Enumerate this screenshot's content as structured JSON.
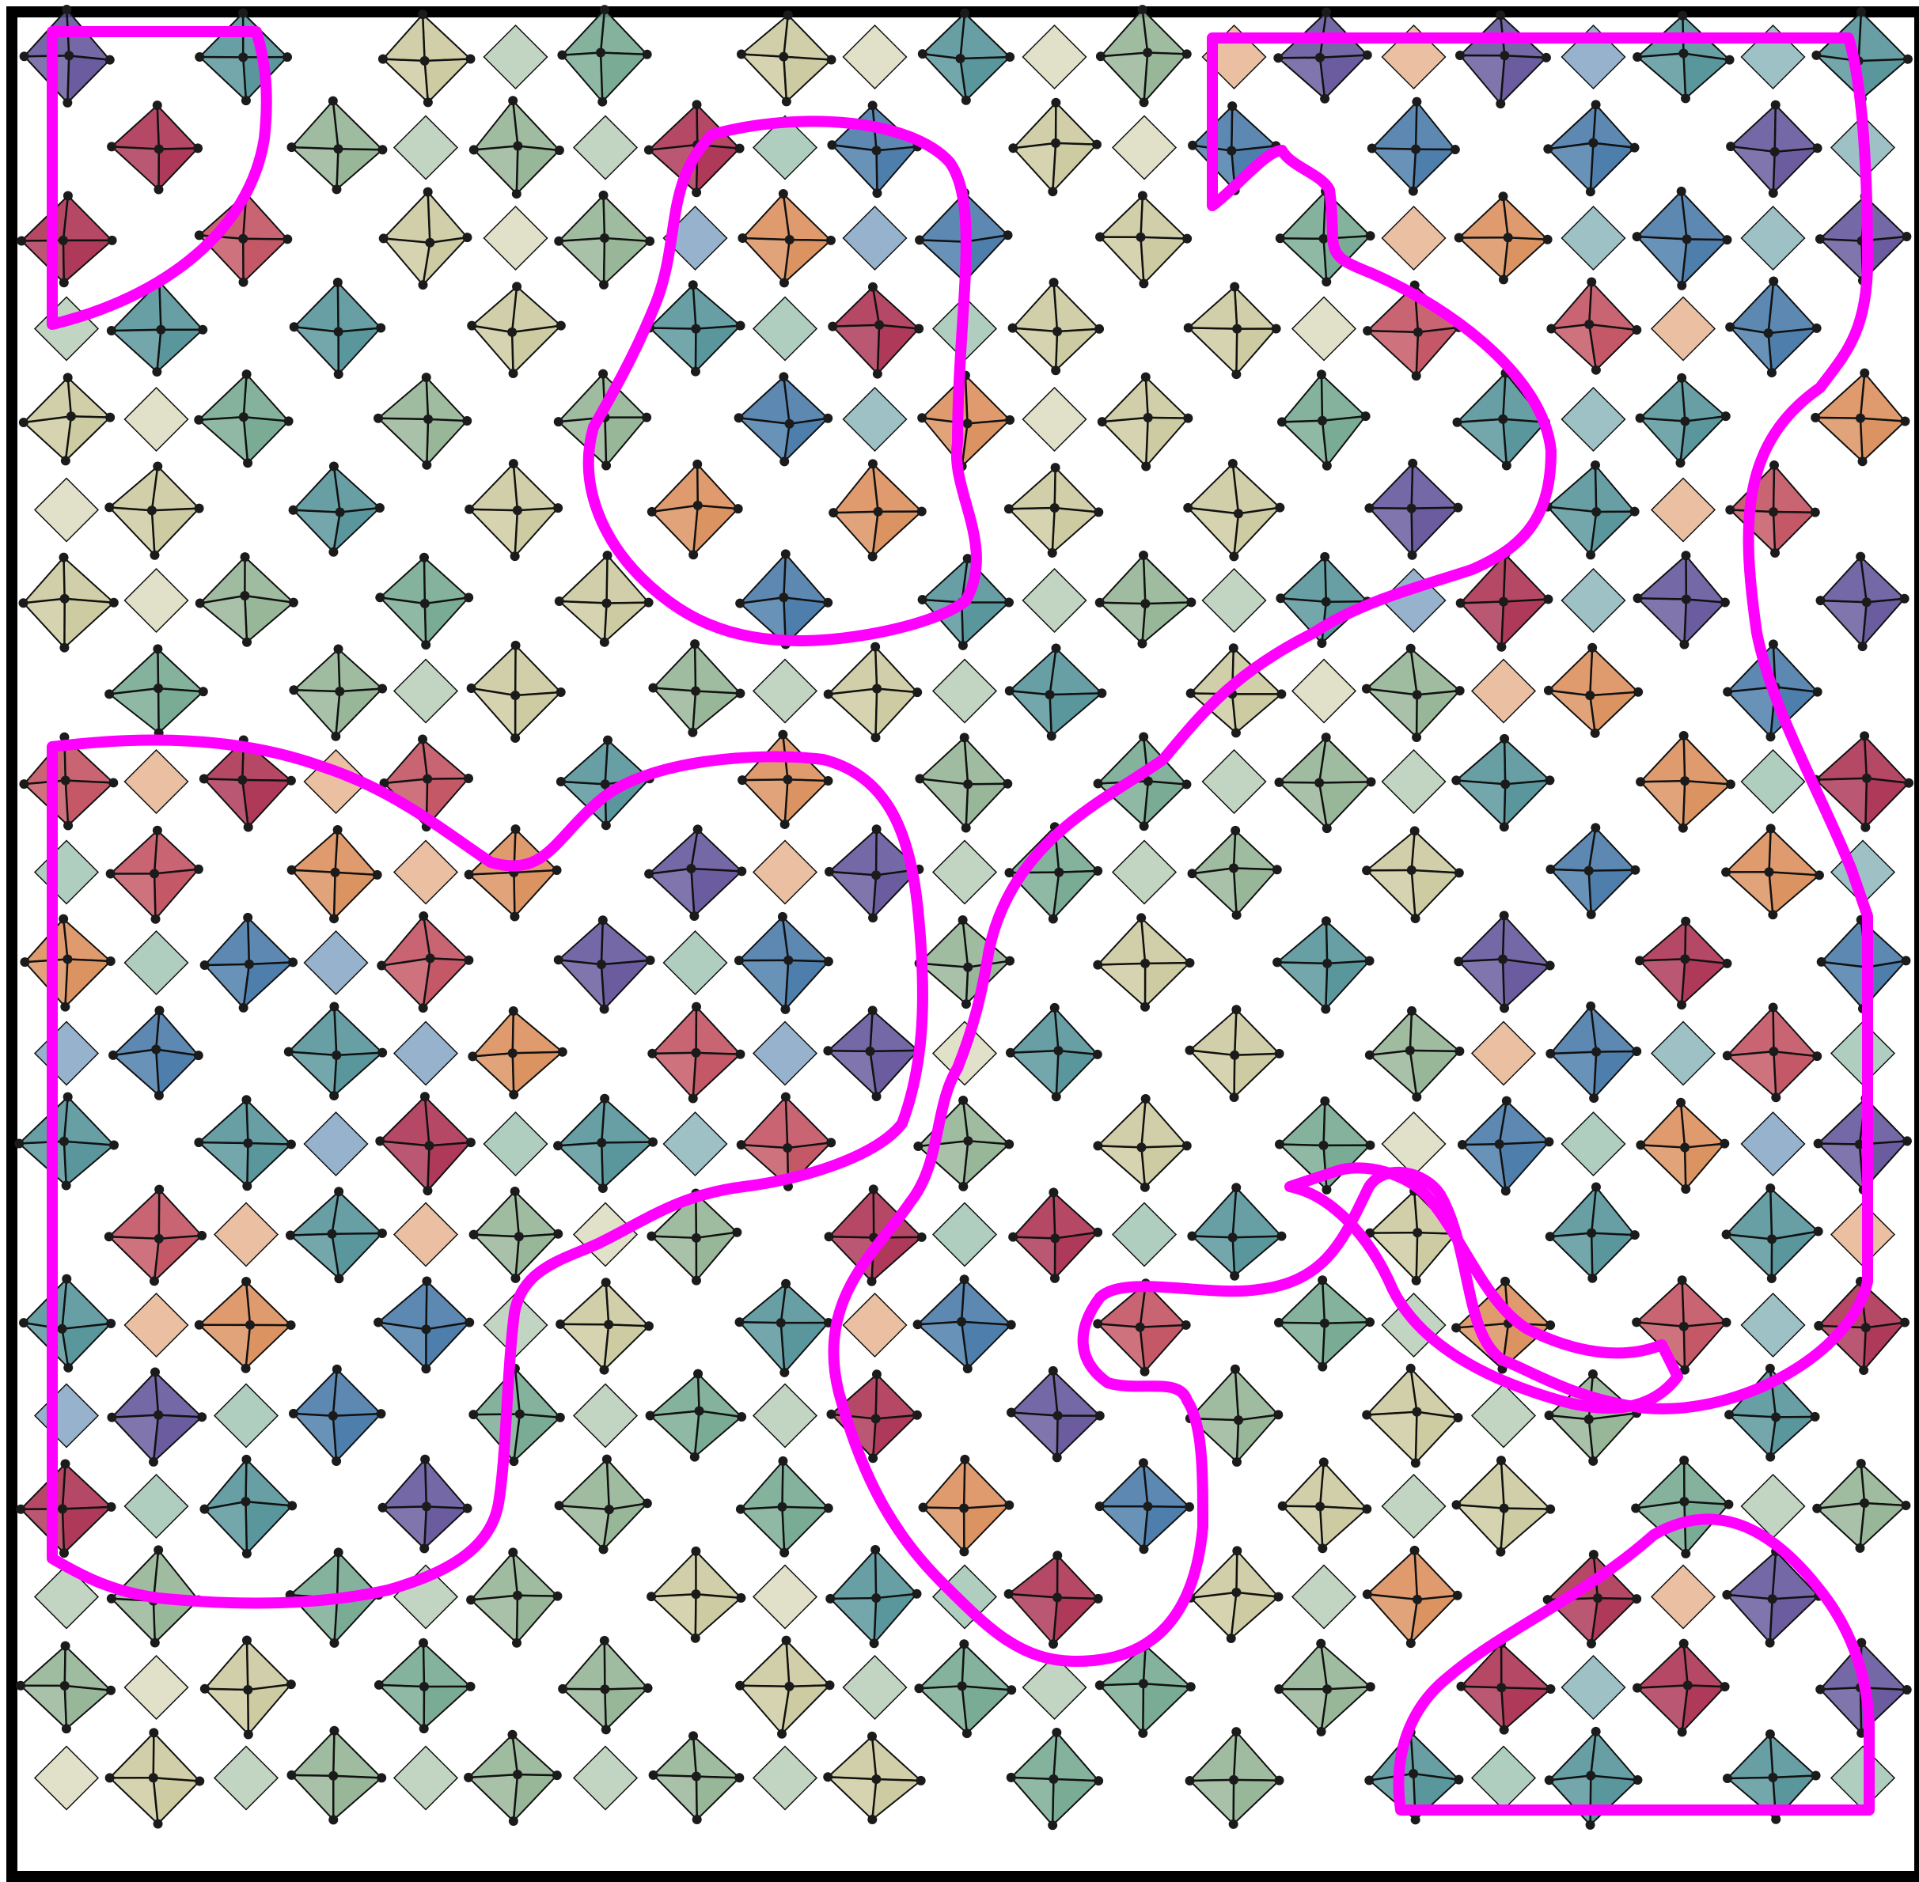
{
  "figure": {
    "kind": "rotated-tetrahedra lattice with highlighted domains",
    "lattice": {
      "columns": 21,
      "rows": 20
    },
    "palette": {
      "neutral": "#c9c79a",
      "sage": "#8fb08f",
      "green": "#6fa58c",
      "teal": "#4c8e95",
      "blue": "#3f73a4",
      "orange": "#d98a55",
      "red": "#c04a5a",
      "crimson": "#a7284a",
      "purple": "#5d4e96",
      "edge": "#111111",
      "node": "#1b1b1b",
      "domain_outline": "#ff00ff",
      "frame": "#000000"
    },
    "domains": [
      {
        "name": "top-left-corner-domain"
      },
      {
        "name": "upper-center-domain"
      },
      {
        "name": "upper-right-domain"
      },
      {
        "name": "left-domain"
      },
      {
        "name": "center-domain"
      },
      {
        "name": "lower-center-domain"
      },
      {
        "name": "bottom-right-domain"
      }
    ]
  }
}
